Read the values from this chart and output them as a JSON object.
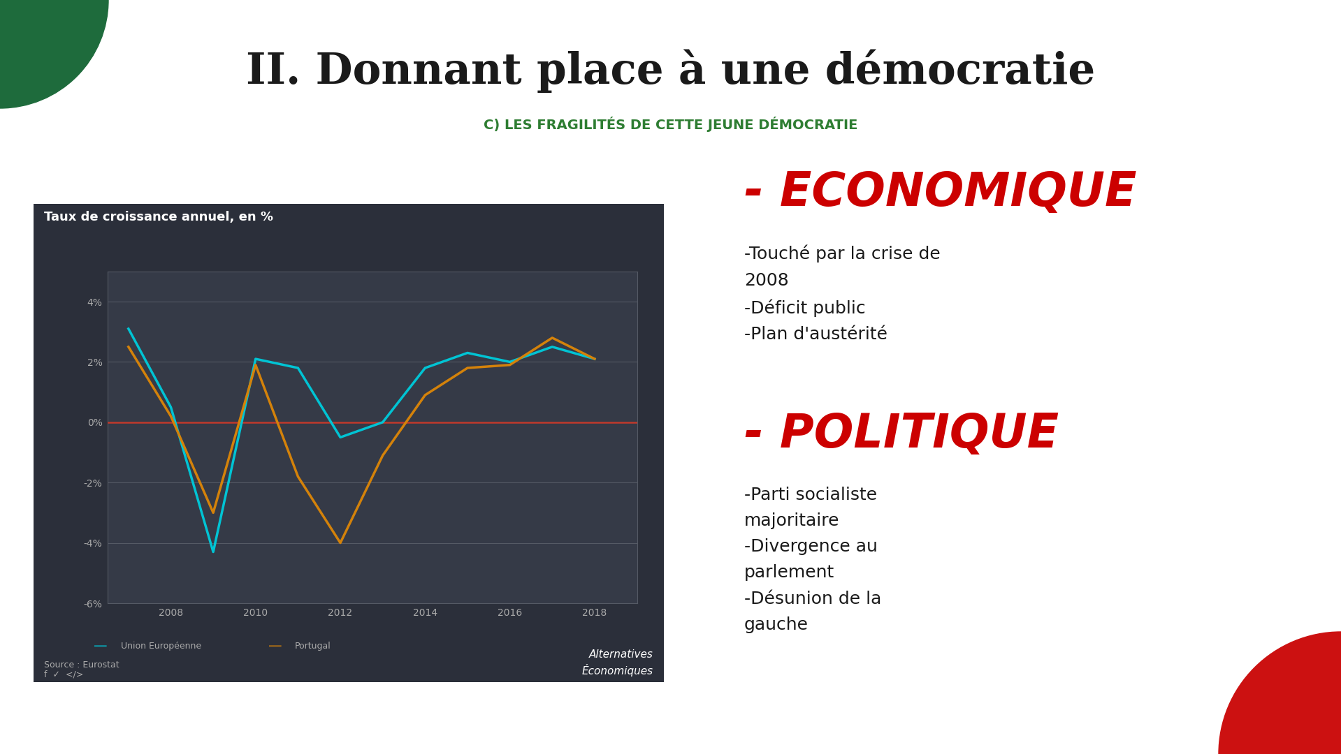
{
  "title": "II. Donnant place à une démocratie",
  "subtitle": "C) LES FRAGILITÉS DE CETTE JEUNE DÉMOCRATIE",
  "chart_title": "Taux de croissance annuel, en %",
  "source": "Source : Eurostat",
  "watermark_line1": "Alternatives",
  "watermark_line2": "Économiques",
  "bg_color": "#ffffff",
  "chart_bg": "#2b2f3a",
  "chart_inner_bg": "#353a47",
  "title_color": "#1a1a1a",
  "subtitle_color": "#2e7d32",
  "econ_title": "- ECONOMIQUE",
  "econ_color": "#cc0000",
  "econ_bullets": "-Touché par la crise de\n2008\n-Déficit public\n-Plan d'austérité",
  "pol_title": "- POLITIQUE",
  "pol_color": "#cc0000",
  "pol_bullets": "-Parti socialiste\nmajoritaire\n-Divergence au\nparlement\n-Désunion de la\ngauche",
  "years": [
    2007,
    2008,
    2009,
    2010,
    2011,
    2012,
    2013,
    2014,
    2015,
    2016,
    2017,
    2018
  ],
  "eu_data": [
    3.1,
    0.5,
    -4.3,
    2.1,
    1.8,
    -0.5,
    0.0,
    1.8,
    2.3,
    2.0,
    2.5,
    2.1
  ],
  "pt_data": [
    2.5,
    0.2,
    -3.0,
    1.9,
    -1.8,
    -4.0,
    -1.1,
    0.9,
    1.8,
    1.9,
    2.8,
    2.1
  ],
  "eu_color": "#00c4d4",
  "pt_color": "#d4820a",
  "zero_line_color": "#c0392b",
  "grid_color": "#555a65",
  "tick_color": "#aaaaaa",
  "ylim": [
    -6,
    5
  ],
  "yticks": [
    -6,
    -4,
    -2,
    0,
    2,
    4
  ],
  "ytick_labels": [
    "-6%",
    "-4%",
    "-2%",
    "0%",
    "2%",
    "4%"
  ],
  "xticks": [
    2008,
    2010,
    2012,
    2014,
    2016,
    2018
  ],
  "green_shape_color": "#1e6b3c",
  "red_shape_color": "#cc1111",
  "legend_eu": "Union Européenne",
  "legend_pt": "Portugal"
}
